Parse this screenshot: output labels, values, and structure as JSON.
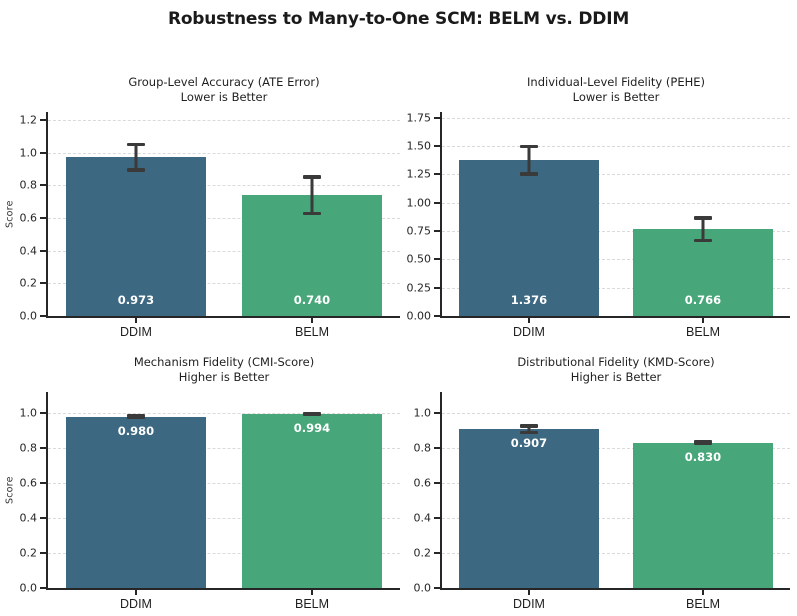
{
  "figure_title": "Robustness to Many-to-One SCM: BELM vs. DDIM",
  "colors": {
    "bar_ddim": "#3d6881",
    "bar_belm": "#47a77a",
    "error_bar": "#3a3a3a",
    "gridline": "#dadada",
    "axis": "#262626",
    "value_label": "#ffffff"
  },
  "chart_data": [
    {
      "type": "bar",
      "title": "Group-Level Accuracy (ATE Error)",
      "subtitle": "Lower is Better",
      "ylabel": "Score",
      "categories": [
        "DDIM",
        "BELM"
      ],
      "values": [
        0.973,
        0.74
      ],
      "errors": [
        0.078,
        0.112
      ],
      "bar_labels": [
        "0.973",
        "0.740"
      ],
      "yticks": [
        0,
        0.2,
        0.4,
        0.6,
        0.8,
        1.0,
        1.2
      ],
      "ytick_labels": [
        "0.0",
        "0.2",
        "0.4",
        "0.6",
        "0.8",
        "1.0",
        "1.2"
      ],
      "ylim": [
        0,
        1.25
      ],
      "grid": true,
      "value_label_pos": "bottom"
    },
    {
      "type": "bar",
      "title": "Individual-Level Fidelity (PEHE)",
      "subtitle": "Lower is Better",
      "ylabel": "",
      "categories": [
        "DDIM",
        "BELM"
      ],
      "values": [
        1.376,
        0.766
      ],
      "errors": [
        0.122,
        0.1
      ],
      "bar_labels": [
        "1.376",
        "0.766"
      ],
      "yticks": [
        0,
        0.25,
        0.5,
        0.75,
        1.0,
        1.25,
        1.5,
        1.75
      ],
      "ytick_labels": [
        "0.00",
        "0.25",
        "0.50",
        "0.75",
        "1.00",
        "1.25",
        "1.50",
        "1.75"
      ],
      "ylim": [
        0,
        1.8
      ],
      "grid": true,
      "value_label_pos": "bottom"
    },
    {
      "type": "bar",
      "title": "Mechanism Fidelity (CMI-Score)",
      "subtitle": "Higher is Better",
      "ylabel": "Score",
      "categories": [
        "DDIM",
        "BELM"
      ],
      "values": [
        0.98,
        0.994
      ],
      "errors": [
        0.006,
        0.004
      ],
      "bar_labels": [
        "0.980",
        "0.994"
      ],
      "yticks": [
        0,
        0.2,
        0.4,
        0.6,
        0.8,
        1.0
      ],
      "ytick_labels": [
        "0.0",
        "0.2",
        "0.4",
        "0.6",
        "0.8",
        "1.0"
      ],
      "ylim": [
        0,
        1.12
      ],
      "grid": true,
      "value_label_pos": "below_top"
    },
    {
      "type": "bar",
      "title": "Distributional Fidelity (KMD-Score)",
      "subtitle": "Higher is Better",
      "ylabel": "",
      "categories": [
        "DDIM",
        "BELM"
      ],
      "values": [
        0.907,
        0.83
      ],
      "errors": [
        0.018,
        0.006
      ],
      "bar_labels": [
        "0.907",
        "0.830"
      ],
      "yticks": [
        0,
        0.2,
        0.4,
        0.6,
        0.8,
        1.0
      ],
      "ytick_labels": [
        "0.0",
        "0.2",
        "0.4",
        "0.6",
        "0.8",
        "1.0"
      ],
      "ylim": [
        0,
        1.12
      ],
      "grid": true,
      "value_label_pos": "below_top"
    }
  ]
}
